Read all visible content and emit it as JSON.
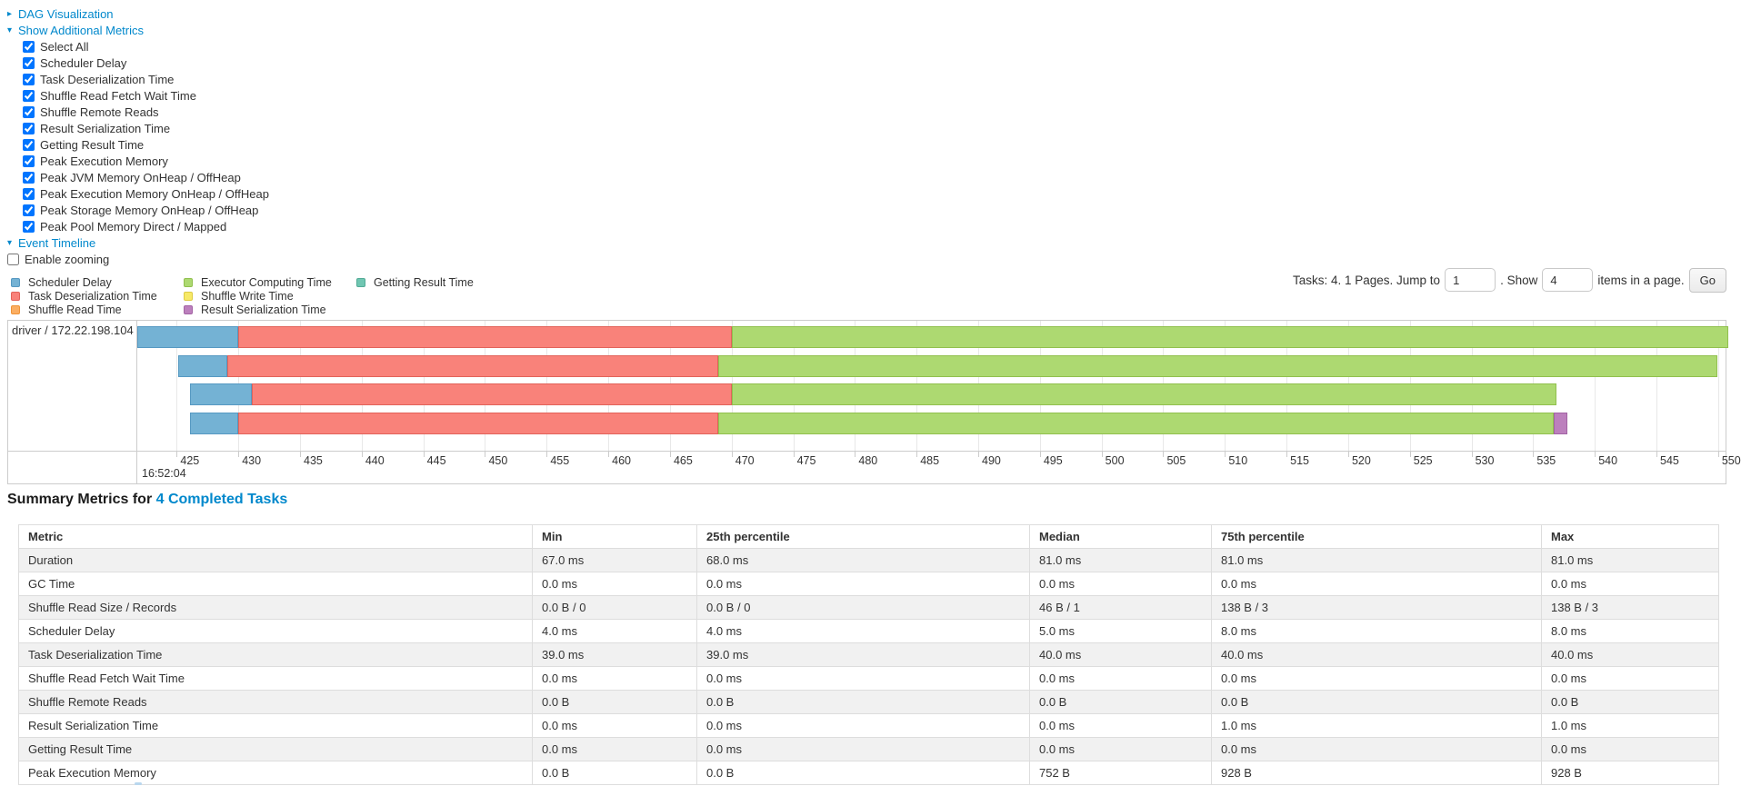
{
  "controls": {
    "dag": {
      "label": "DAG Visualization",
      "state": "collapsed"
    },
    "metrics_toggle": {
      "label": "Show Additional Metrics",
      "state": "expanded"
    },
    "metric_items": [
      {
        "label": "Select All",
        "checked": true
      },
      {
        "label": "Scheduler Delay",
        "checked": true
      },
      {
        "label": "Task Deserialization Time",
        "checked": true
      },
      {
        "label": "Shuffle Read Fetch Wait Time",
        "checked": true
      },
      {
        "label": "Shuffle Remote Reads",
        "checked": true
      },
      {
        "label": "Result Serialization Time",
        "checked": true
      },
      {
        "label": "Getting Result Time",
        "checked": true
      },
      {
        "label": "Peak Execution Memory",
        "checked": true
      },
      {
        "label": "Peak JVM Memory OnHeap / OffHeap",
        "checked": true
      },
      {
        "label": "Peak Execution Memory OnHeap / OffHeap",
        "checked": true
      },
      {
        "label": "Peak Storage Memory OnHeap / OffHeap",
        "checked": true
      },
      {
        "label": "Peak Pool Memory Direct / Mapped",
        "checked": true
      }
    ],
    "event_timeline_toggle": {
      "label": "Event Timeline",
      "state": "expanded"
    },
    "enable_zooming": {
      "label": "Enable zooming",
      "checked": false
    }
  },
  "legend": {
    "columns": [
      [
        "Scheduler Delay",
        "Task Deserialization Time",
        "Shuffle Read Time"
      ],
      [
        "Executor Computing Time",
        "Shuffle Write Time",
        "Result Serialization Time"
      ],
      [
        "Getting Result Time"
      ]
    ]
  },
  "pager": {
    "tasks_text": "Tasks: 4. 1 Pages. Jump to",
    "jump_value": "1",
    "show_text": ". Show",
    "show_value": "4",
    "items_text": "items in a page.",
    "go_label": "Go"
  },
  "chart_data": {
    "type": "timeline",
    "title": "Event Timeline",
    "row_label": "driver / 172.22.198.104",
    "x_axis": {
      "min": 421.8,
      "max": 550.6,
      "ticks": [
        425,
        430,
        435,
        440,
        445,
        450,
        455,
        460,
        465,
        470,
        475,
        480,
        485,
        490,
        495,
        500,
        505,
        510,
        515,
        520,
        525,
        530,
        535,
        540,
        545,
        550
      ],
      "start_time_label": "16:52:04",
      "grid": true
    },
    "colors": {
      "Scheduler Delay": {
        "fill": "#74b2d4",
        "border": "#5699c2"
      },
      "Task Deserialization Time": {
        "fill": "#f9827a",
        "border": "#e2635a"
      },
      "Shuffle Read Time": {
        "fill": "#fbae62",
        "border": "#ef9336"
      },
      "Executor Computing Time": {
        "fill": "#add971",
        "border": "#91c04e"
      },
      "Shuffle Write Time": {
        "fill": "#f7e967",
        "border": "#ddcb44"
      },
      "Result Serialization Time": {
        "fill": "#bc80bd",
        "border": "#a263a4"
      },
      "Getting Result Time": {
        "fill": "#70c6b2",
        "border": "#52ab96"
      }
    },
    "tasks": [
      {
        "segments": [
          {
            "metric": "Scheduler Delay",
            "start": 421.8,
            "end": 430.0
          },
          {
            "metric": "Task Deserialization Time",
            "start": 430.0,
            "end": 470.0
          },
          {
            "metric": "Executor Computing Time",
            "start": 470.0,
            "end": 550.8
          }
        ]
      },
      {
        "segments": [
          {
            "metric": "Scheduler Delay",
            "start": 425.1,
            "end": 429.1
          },
          {
            "metric": "Task Deserialization Time",
            "start": 429.1,
            "end": 468.9
          },
          {
            "metric": "Executor Computing Time",
            "start": 468.9,
            "end": 549.9
          }
        ]
      },
      {
        "segments": [
          {
            "metric": "Scheduler Delay",
            "start": 426.1,
            "end": 431.1
          },
          {
            "metric": "Task Deserialization Time",
            "start": 431.1,
            "end": 470.0
          },
          {
            "metric": "Executor Computing Time",
            "start": 470.0,
            "end": 536.9
          }
        ]
      },
      {
        "segments": [
          {
            "metric": "Scheduler Delay",
            "start": 426.1,
            "end": 430.0
          },
          {
            "metric": "Task Deserialization Time",
            "start": 430.0,
            "end": 468.9
          },
          {
            "metric": "Executor Computing Time",
            "start": 468.9,
            "end": 536.7
          },
          {
            "metric": "Result Serialization Time",
            "start": 536.7,
            "end": 537.8
          }
        ]
      }
    ]
  },
  "summary": {
    "title_prefix": "Summary Metrics for ",
    "title_link": "4 Completed Tasks",
    "headers": [
      "Metric",
      "Min",
      "25th percentile",
      "Median",
      "75th percentile",
      "Max"
    ],
    "rows": [
      [
        "Duration",
        "67.0 ms",
        "68.0 ms",
        "81.0 ms",
        "81.0 ms",
        "81.0 ms"
      ],
      [
        "GC Time",
        "0.0 ms",
        "0.0 ms",
        "0.0 ms",
        "0.0 ms",
        "0.0 ms"
      ],
      [
        "Shuffle Read Size / Records",
        "0.0 B / 0",
        "0.0 B / 0",
        "46 B / 1",
        "138 B / 3",
        "138 B / 3"
      ],
      [
        "Scheduler Delay",
        "4.0 ms",
        "4.0 ms",
        "5.0 ms",
        "8.0 ms",
        "8.0 ms"
      ],
      [
        "Task Deserialization Time",
        "39.0 ms",
        "39.0 ms",
        "40.0 ms",
        "40.0 ms",
        "40.0 ms"
      ],
      [
        "Shuffle Read Fetch Wait Time",
        "0.0 ms",
        "0.0 ms",
        "0.0 ms",
        "0.0 ms",
        "0.0 ms"
      ],
      [
        "Shuffle Remote Reads",
        "0.0 B",
        "0.0 B",
        "0.0 B",
        "0.0 B",
        "0.0 B"
      ],
      [
        "Result Serialization Time",
        "0.0 ms",
        "0.0 ms",
        "0.0 ms",
        "1.0 ms",
        "1.0 ms"
      ],
      [
        "Getting Result Time",
        "0.0 ms",
        "0.0 ms",
        "0.0 ms",
        "0.0 ms",
        "0.0 ms"
      ],
      [
        "Peak Execution Memory",
        "0.0 B",
        "0.0 B",
        "752 B",
        "928 B",
        "928 B"
      ]
    ]
  },
  "accent_colors": {
    "link_blue": "#0088cc",
    "grid_line": "#e8e8e8",
    "table_stripe": "#f1f1f1"
  }
}
